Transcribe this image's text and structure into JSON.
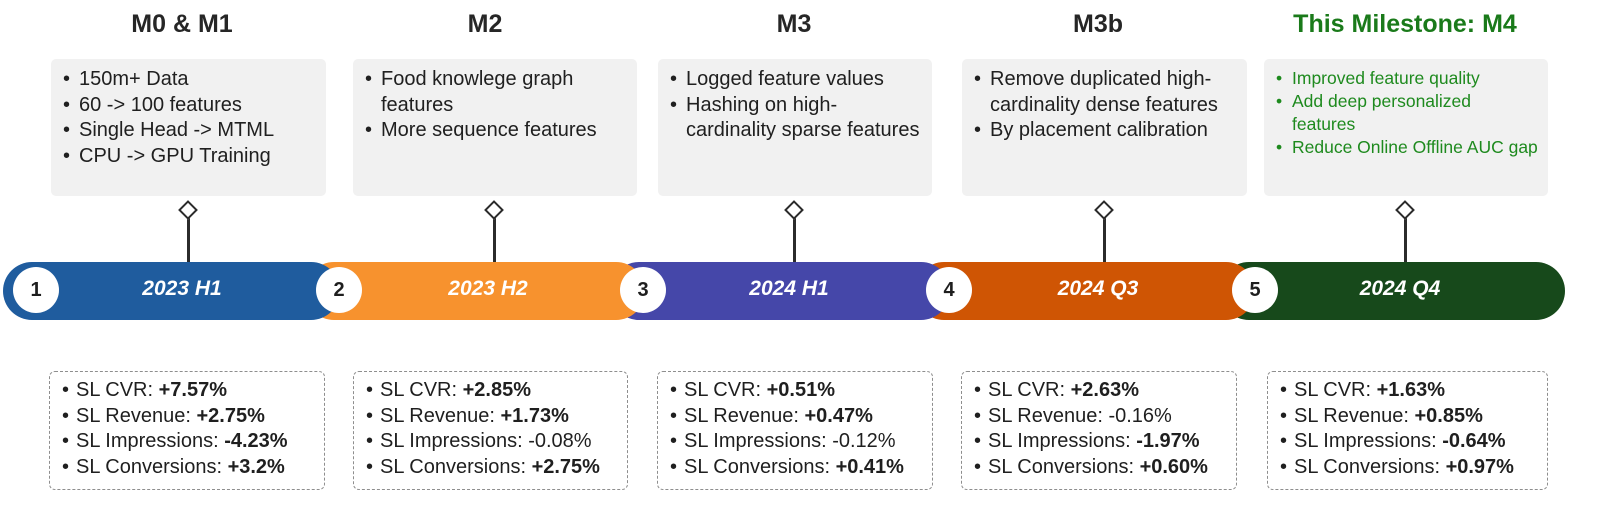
{
  "colors": {
    "m1": "#1f5c9e",
    "m2": "#f7922e",
    "m3": "#4547a9",
    "m4": "#cf5504",
    "m5": "#17491b",
    "current_title": "#1a7a1a"
  },
  "milestones": [
    {
      "title": "M0 & M1",
      "number": "1",
      "period": "2023 H1",
      "current": false,
      "features": [
        "150m+ Data",
        "60 -> 100 features",
        "Single Head -> MTML",
        "CPU -> GPU Training"
      ],
      "results": [
        {
          "metric": "SL CVR:",
          "value": "+7.57%",
          "bold": true
        },
        {
          "metric": "SL Revenue:",
          "value": "+2.75%",
          "bold": true
        },
        {
          "metric": "SL Impressions:",
          "value": "-4.23%",
          "bold": true
        },
        {
          "metric": "SL Conversions:",
          "value": "+3.2%",
          "bold": true
        }
      ]
    },
    {
      "title": "M2",
      "number": "2",
      "period": "2023 H2",
      "current": false,
      "features": [
        "Food knowlege graph features",
        "More sequence features"
      ],
      "results": [
        {
          "metric": "SL CVR:",
          "value": "+2.85%",
          "bold": true
        },
        {
          "metric": "SL Revenue:",
          "value": "+1.73%",
          "bold": true
        },
        {
          "metric": "SL Impressions:",
          "value": "-0.08%",
          "bold": false
        },
        {
          "metric": "SL Conversions:",
          "value": "+2.75%",
          "bold": true
        }
      ]
    },
    {
      "title": "M3",
      "number": "3",
      "period": "2024 H1",
      "current": false,
      "features": [
        "Logged feature values",
        "Hashing on high-cardinality sparse features"
      ],
      "results": [
        {
          "metric": "SL CVR:",
          "value": "+0.51%",
          "bold": true
        },
        {
          "metric": "SL Revenue:",
          "value": "+0.47%",
          "bold": true
        },
        {
          "metric": "SL Impressions:",
          "value": "-0.12%",
          "bold": false
        },
        {
          "metric": "SL Conversions:",
          "value": "+0.41%",
          "bold": true
        }
      ]
    },
    {
      "title": "M3b",
      "number": "4",
      "period": "2024 Q3",
      "current": false,
      "features": [
        "Remove duplicated high-cardinality dense features",
        "By placement calibration"
      ],
      "results": [
        {
          "metric": "SL CVR:",
          "value": "+2.63%",
          "bold": true
        },
        {
          "metric": "SL Revenue:",
          "value": "-0.16%",
          "bold": false
        },
        {
          "metric": "SL Impressions:",
          "value": "-1.97%",
          "bold": true
        },
        {
          "metric": "SL Conversions:",
          "value": "+0.60%",
          "bold": true
        }
      ]
    },
    {
      "title": "This Milestone: M4",
      "number": "5",
      "period": "2024 Q4",
      "current": true,
      "features": [
        "Improved feature quality",
        "Add deep personalized features",
        "Reduce Online Offline AUC gap"
      ],
      "results": [
        {
          "metric": "SL CVR:",
          "value": "+1.63%",
          "bold": true
        },
        {
          "metric": "SL Revenue:",
          "value": "+0.85%",
          "bold": true
        },
        {
          "metric": "SL Impressions:",
          "value": "-0.64%",
          "bold": true
        },
        {
          "metric": "SL Conversions:",
          "value": "+0.97%",
          "bold": true
        }
      ]
    }
  ]
}
